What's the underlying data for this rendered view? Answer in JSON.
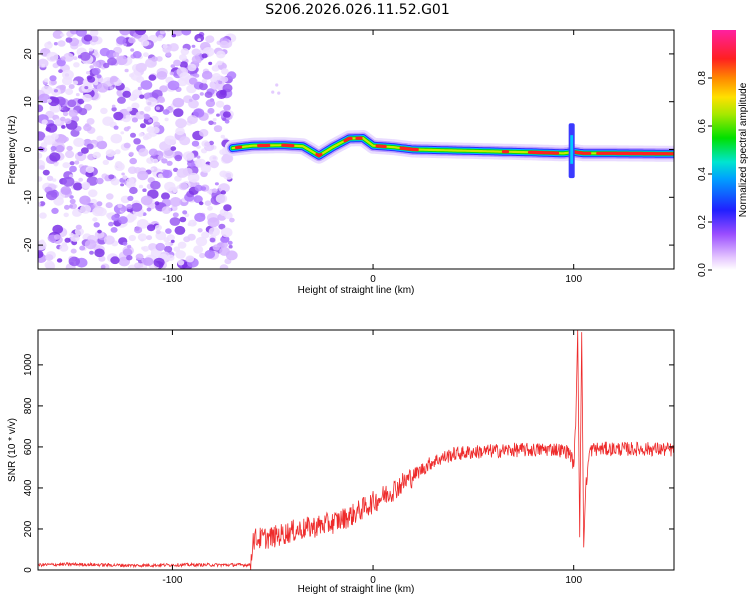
{
  "title": "S206.2026.026.11.52.G01",
  "colors": {
    "snr_line": "#ee2b2b",
    "scatter": "#8a2be2",
    "frame": "#000000"
  },
  "chart_data": [
    {
      "type": "heatmap",
      "xlabel": "Height of straight line (km)",
      "ylabel": "Frequency (Hz)",
      "xlim": [
        -167,
        150
      ],
      "ylim": [
        -25,
        25
      ],
      "xticks": [
        -100,
        0,
        100
      ],
      "yticks": [
        -20,
        -10,
        0,
        10,
        20
      ],
      "colorbar": {
        "label": "Normalized spectral amplitude",
        "range": [
          0,
          1
        ],
        "ticks": [
          "0.0",
          "0.2",
          "0.4",
          "0.6",
          "0.8"
        ],
        "tick_values": [
          0.0,
          0.2,
          0.4,
          0.6,
          0.8
        ],
        "colormap": "rainbow (white-violet-blue-cyan-green-yellow-red-magenta)"
      },
      "description_points": {
        "noise_region_x": [
          -167,
          -70
        ],
        "ridge": {
          "x": [
            -70,
            -60,
            -45,
            -35,
            -27,
            -20,
            -12,
            -5,
            0,
            10,
            20,
            40,
            60,
            80,
            95,
            100,
            105,
            120,
            150
          ],
          "y": [
            0.3,
            0.8,
            0.9,
            0.7,
            -1.3,
            0.5,
            2.3,
            2.4,
            0.8,
            0.5,
            0.0,
            -0.2,
            -0.4,
            -0.6,
            -0.8,
            -0.5,
            -0.8,
            -0.8,
            -0.9
          ]
        }
      }
    },
    {
      "type": "line",
      "xlabel": "Height of straight line (km)",
      "ylabel": "SNR (10 * v/v)",
      "xlim": [
        -167,
        150
      ],
      "ylim": [
        0,
        1170
      ],
      "xticks": [
        -100,
        0,
        100
      ],
      "yticks": [
        0,
        200,
        400,
        600,
        800,
        1000
      ],
      "series": [
        {
          "x": [
            -167,
            -150,
            -120,
            -100,
            -80,
            -70,
            -61,
            -60,
            -50,
            -40,
            -30,
            -20,
            -10,
            0,
            10,
            20,
            30,
            40,
            50,
            60,
            70,
            80,
            90,
            98,
            100,
            101,
            102,
            103,
            104,
            105,
            106,
            108,
            110,
            120,
            130,
            140,
            150
          ],
          "values": [
            25,
            28,
            22,
            25,
            25,
            25,
            25,
            150,
            160,
            190,
            210,
            230,
            270,
            330,
            390,
            460,
            530,
            565,
            575,
            580,
            585,
            585,
            590,
            575,
            510,
            700,
            1170,
            160,
            1160,
            110,
            400,
            580,
            590,
            590,
            590,
            590,
            585
          ]
        }
      ]
    }
  ]
}
